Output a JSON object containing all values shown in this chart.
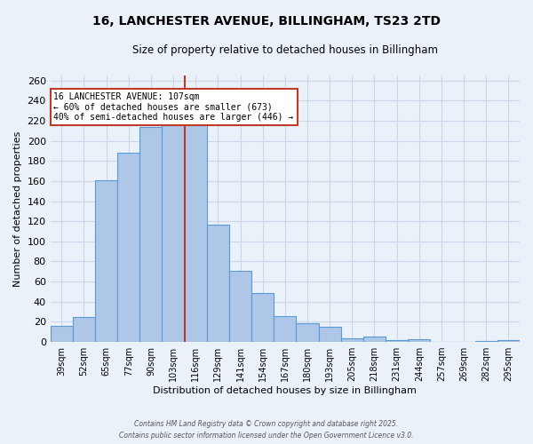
{
  "title_line1": "16, LANCHESTER AVENUE, BILLINGHAM, TS23 2TD",
  "title_line2": "Size of property relative to detached houses in Billingham",
  "xlabel": "Distribution of detached houses by size in Billingham",
  "ylabel": "Number of detached properties",
  "categories": [
    "39sqm",
    "52sqm",
    "65sqm",
    "77sqm",
    "90sqm",
    "103sqm",
    "116sqm",
    "129sqm",
    "141sqm",
    "154sqm",
    "167sqm",
    "180sqm",
    "193sqm",
    "205sqm",
    "218sqm",
    "231sqm",
    "244sqm",
    "257sqm",
    "269sqm",
    "282sqm",
    "295sqm"
  ],
  "values": [
    16,
    25,
    161,
    188,
    214,
    219,
    219,
    117,
    71,
    49,
    26,
    19,
    15,
    4,
    5,
    2,
    3,
    0,
    0,
    1,
    2
  ],
  "bar_color": "#aec6e8",
  "bar_edge_color": "#5b9bd5",
  "grid_color": "#c8d8ea",
  "background_color": "#eaf1f8",
  "property_line_color": "#c0392b",
  "annotation_text": "16 LANCHESTER AVENUE: 107sqm\n← 60% of detached houses are smaller (673)\n40% of semi-detached houses are larger (446) →",
  "annotation_box_color": "#ffffff",
  "annotation_box_edge": "#c0392b",
  "ylim": [
    0,
    265
  ],
  "yticks": [
    0,
    20,
    40,
    60,
    80,
    100,
    120,
    140,
    160,
    180,
    200,
    220,
    240,
    260
  ],
  "footer_line1": "Contains HM Land Registry data © Crown copyright and database right 2025.",
  "footer_line2": "Contains public sector information licensed under the Open Government Licence v3.0."
}
